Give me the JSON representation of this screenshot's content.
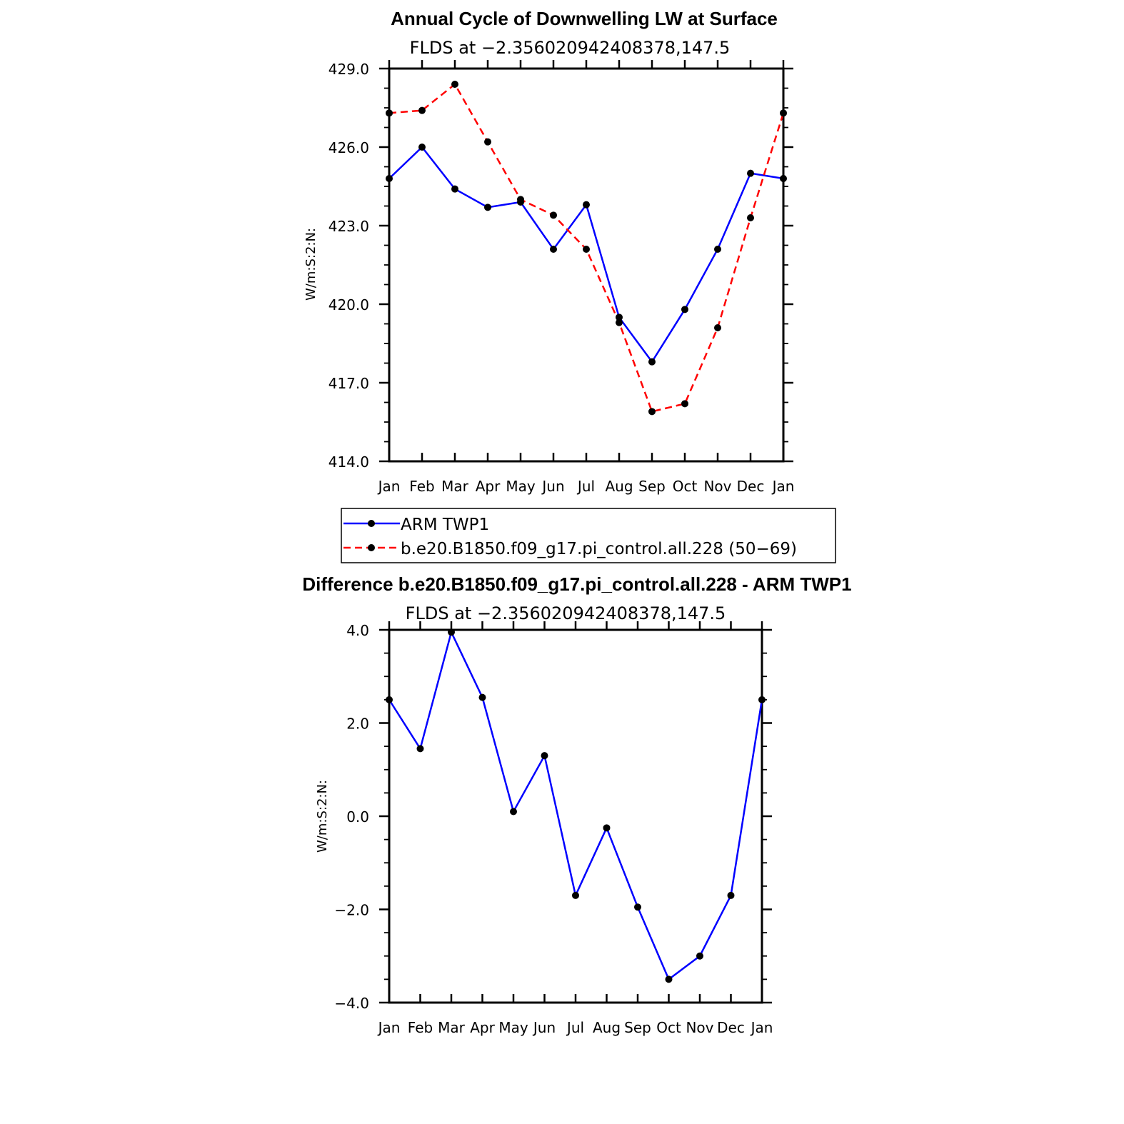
{
  "chart_data": [
    {
      "type": "line",
      "title": "Annual Cycle of Downwelling LW at Surface",
      "subtitle": "FLDS at −2.356020942408378,147.5",
      "ylabel": "W/m:S:2:N:",
      "categories": [
        "Jan",
        "Feb",
        "Mar",
        "Apr",
        "May",
        "Jun",
        "Jul",
        "Aug",
        "Sep",
        "Oct",
        "Nov",
        "Dec",
        "Jan"
      ],
      "ylim": [
        414.0,
        429.0
      ],
      "yticks": [
        "414.0",
        "417.0",
        "420.0",
        "423.0",
        "426.0",
        "429.0"
      ],
      "ytick_values": [
        414,
        417,
        420,
        423,
        426,
        429
      ],
      "series": [
        {
          "name": "ARM TWP1",
          "color": "#0000ff",
          "dash": false,
          "values": [
            424.8,
            426.0,
            424.4,
            423.7,
            423.9,
            422.1,
            423.8,
            419.5,
            417.8,
            419.8,
            422.1,
            425.0,
            424.8
          ]
        },
        {
          "name": "b.e20.B1850.f09_g17.pi_control.all.228 (50−69)",
          "color": "#ff0000",
          "dash": true,
          "values": [
            427.3,
            427.4,
            428.4,
            426.2,
            424.0,
            423.4,
            422.1,
            419.3,
            415.9,
            416.2,
            419.1,
            423.3,
            427.3
          ]
        }
      ],
      "legend_position": "below"
    },
    {
      "type": "line",
      "title": "Difference b.e20.B1850.f09_g17.pi_control.all.228 - ARM TWP1",
      "subtitle": "FLDS at −2.356020942408378,147.5",
      "ylabel": "W/m:S:2:N:",
      "categories": [
        "Jan",
        "Feb",
        "Mar",
        "Apr",
        "May",
        "Jun",
        "Jul",
        "Aug",
        "Sep",
        "Oct",
        "Nov",
        "Dec",
        "Jan"
      ],
      "ylim": [
        -4.0,
        4.0
      ],
      "yticks": [
        "−4.0",
        "−2.0",
        "0.0",
        "2.0",
        "4.0"
      ],
      "ytick_values": [
        -4,
        -2,
        0,
        2,
        4
      ],
      "series": [
        {
          "color": "#0000ff",
          "dash": false,
          "values": [
            2.5,
            1.45,
            3.95,
            2.55,
            0.1,
            1.3,
            -1.7,
            -0.25,
            -1.95,
            -3.5,
            -3.0,
            -1.7,
            2.5
          ]
        }
      ]
    }
  ]
}
